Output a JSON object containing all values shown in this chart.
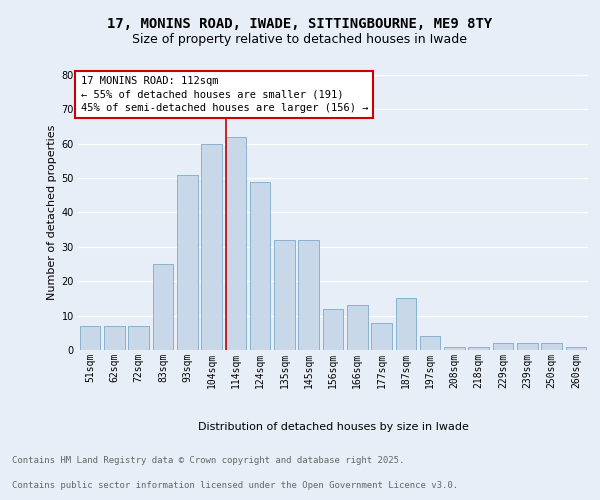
{
  "title_line1": "17, MONINS ROAD, IWADE, SITTINGBOURNE, ME9 8TY",
  "title_line2": "Size of property relative to detached houses in Iwade",
  "xlabel": "Distribution of detached houses by size in Iwade",
  "ylabel": "Number of detached properties",
  "categories": [
    "51sqm",
    "62sqm",
    "72sqm",
    "83sqm",
    "93sqm",
    "104sqm",
    "114sqm",
    "124sqm",
    "135sqm",
    "145sqm",
    "156sqm",
    "166sqm",
    "177sqm",
    "187sqm",
    "197sqm",
    "208sqm",
    "218sqm",
    "229sqm",
    "239sqm",
    "250sqm",
    "260sqm"
  ],
  "values": [
    7,
    7,
    7,
    25,
    51,
    60,
    62,
    49,
    32,
    32,
    12,
    13,
    8,
    15,
    4,
    1,
    1,
    2,
    2,
    2,
    1
  ],
  "bar_color": "#c8d8e8",
  "bar_edgecolor": "#7aaac8",
  "vline_color": "#cc0000",
  "vline_index": 6,
  "annotation_title": "17 MONINS ROAD: 112sqm",
  "annotation_line1": "← 55% of detached houses are smaller (191)",
  "annotation_line2": "45% of semi-detached houses are larger (156) →",
  "annotation_box_color": "#ffffff",
  "annotation_box_edgecolor": "#cc0000",
  "ylim": [
    0,
    80
  ],
  "yticks": [
    0,
    10,
    20,
    30,
    40,
    50,
    60,
    70,
    80
  ],
  "background_color": "#e8eef8",
  "plot_background_color": "#e8eef8",
  "grid_color": "#ffffff",
  "footnote_line1": "Contains HM Land Registry data © Crown copyright and database right 2025.",
  "footnote_line2": "Contains public sector information licensed under the Open Government Licence v3.0.",
  "title_fontsize": 10,
  "subtitle_fontsize": 9,
  "axis_label_fontsize": 8,
  "tick_fontsize": 7,
  "annotation_fontsize": 7.5,
  "footnote_fontsize": 6.5
}
